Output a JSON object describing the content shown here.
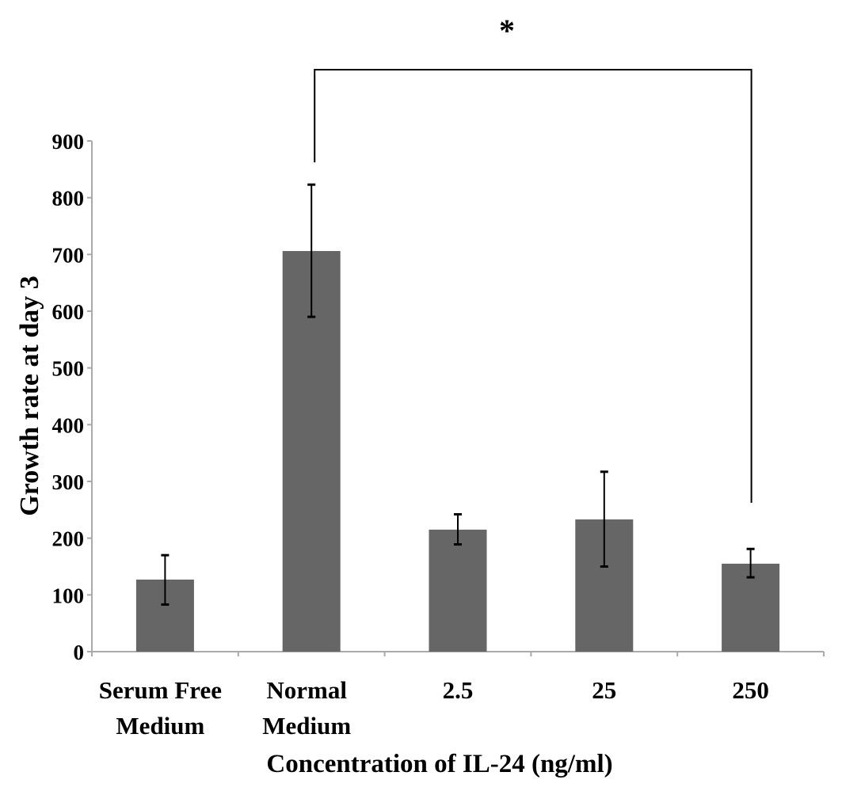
{
  "chart_data": {
    "type": "bar",
    "categories": [
      [
        "Serum Free",
        "Medium"
      ],
      [
        "Normal",
        "Medium"
      ],
      [
        "2.5"
      ],
      [
        "25"
      ],
      [
        "250"
      ]
    ],
    "values": [
      127,
      706,
      215,
      233,
      155
    ],
    "error_bars": [
      [
        83,
        170
      ],
      [
        590,
        823
      ],
      [
        189,
        242
      ],
      [
        150,
        317
      ],
      [
        131,
        181
      ]
    ],
    "xlabel": "Concentration of IL-24 (ng/ml)",
    "ylabel": "Growth rate at day 3",
    "ylim": [
      0,
      900
    ],
    "yticks": [
      0,
      100,
      200,
      300,
      400,
      500,
      600,
      700,
      800,
      900
    ],
    "grid": false,
    "bar_color": "#666666",
    "annotation": {
      "text": "*",
      "from_category": 1,
      "to_category": 4
    }
  }
}
